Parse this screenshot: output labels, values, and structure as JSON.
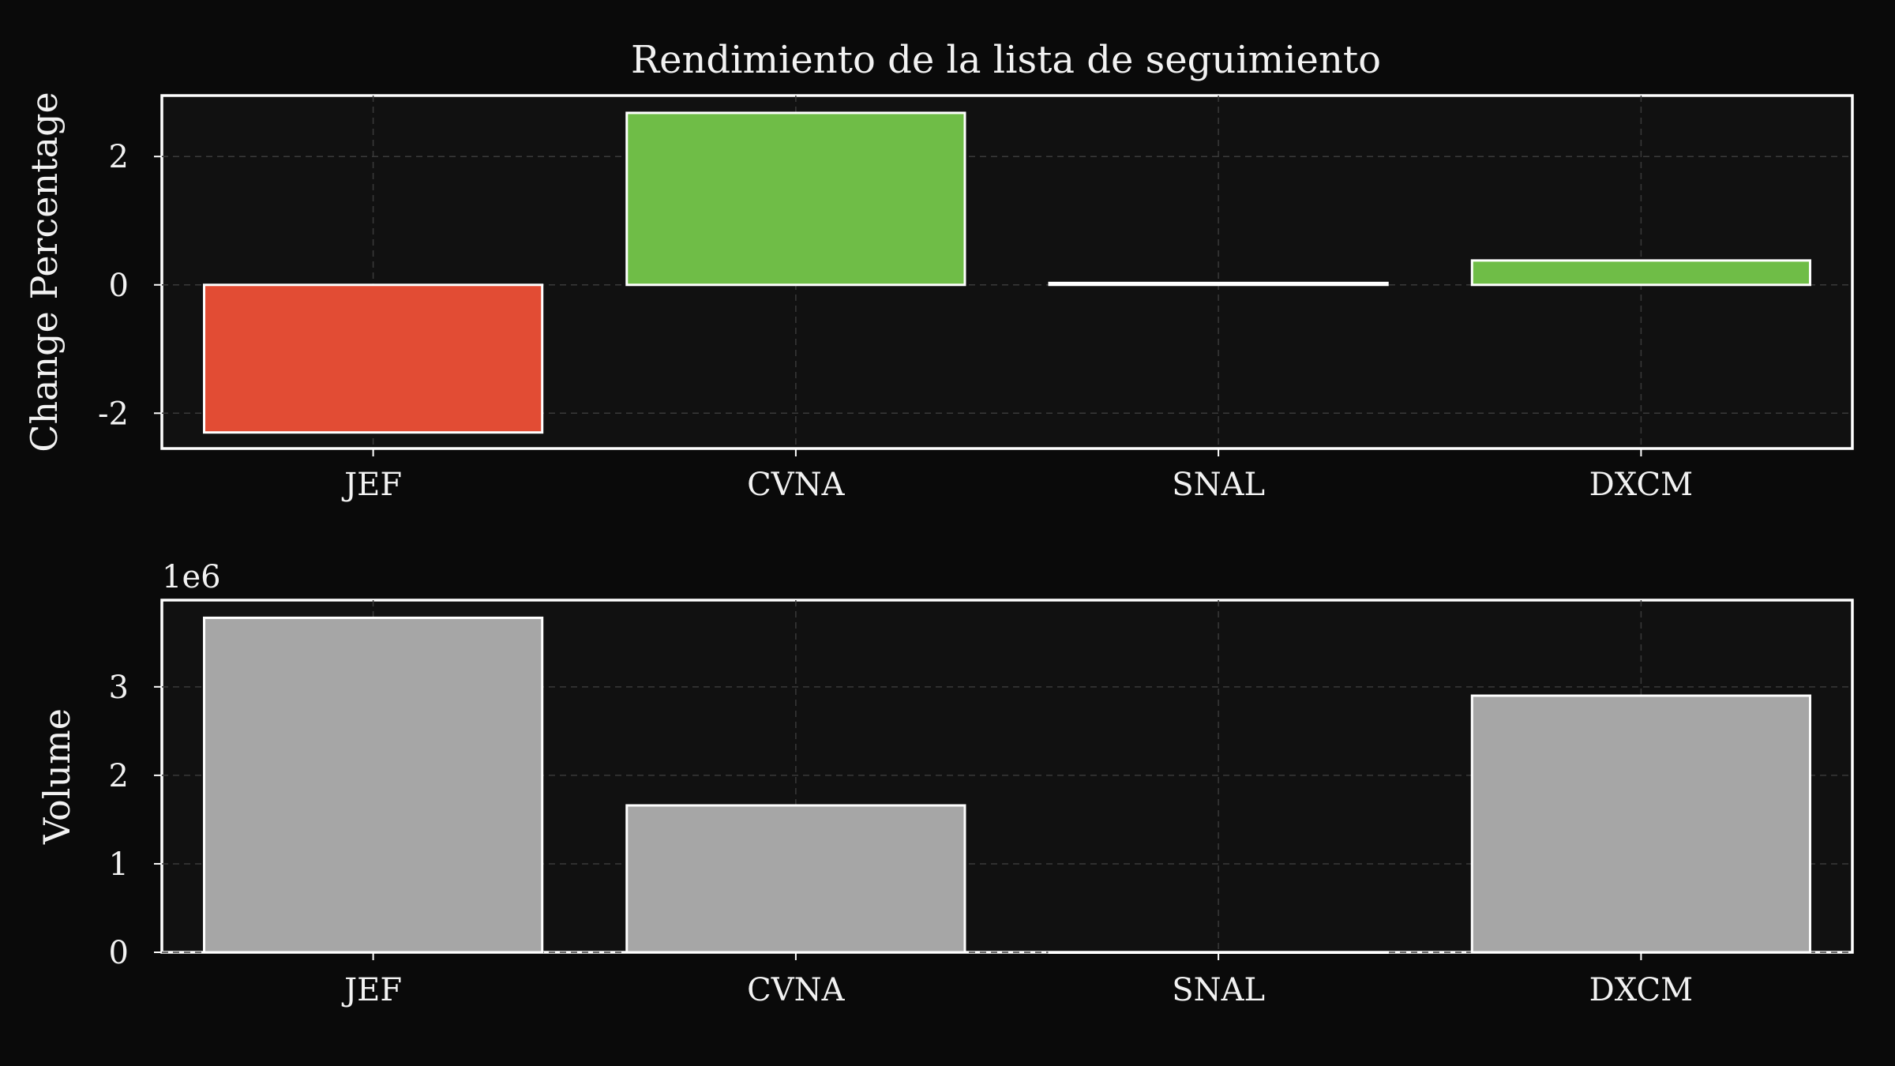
{
  "chart_data": {
    "type": "bar",
    "title": "Rendimiento de la lista de seguimiento",
    "categories": [
      "JEF",
      "CVNA",
      "SNAL",
      "DXCM"
    ],
    "colors": {
      "positive": "#6fbd47",
      "negative": "#e24c34",
      "neutral": "#a6a6a6",
      "background": "#0a0a0a",
      "panel": "#111111"
    },
    "grid": true,
    "panels": [
      {
        "ylabel": "Change Percentage",
        "values": [
          -2.3,
          2.68,
          0.03,
          0.38
        ],
        "ylim": [
          -2.55,
          2.95
        ],
        "yticks": [
          -2,
          0,
          2
        ],
        "ytick_labels": [
          "-2",
          "0",
          "2"
        ],
        "color_rule": "sign"
      },
      {
        "ylabel": "Volume",
        "offset_label": "1e6",
        "values": [
          3780000,
          1660000,
          0,
          2900000
        ],
        "ylim": [
          0,
          3980000
        ],
        "yticks": [
          0,
          1000000,
          2000000,
          3000000
        ],
        "ytick_labels": [
          "0",
          "1",
          "2",
          "3"
        ],
        "color_rule": "neutral"
      }
    ]
  }
}
